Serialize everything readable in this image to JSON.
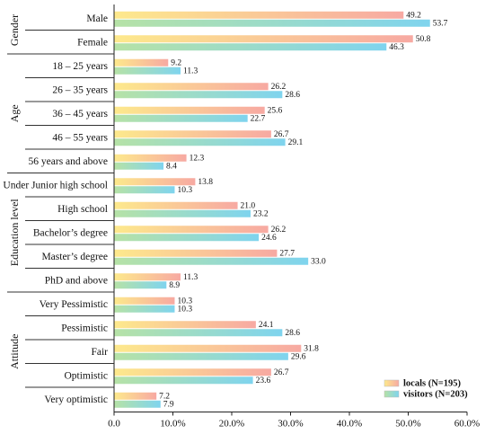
{
  "chart_data": {
    "type": "bar",
    "orientation": "horizontal",
    "groups": [
      {
        "name": "Gender",
        "categories": [
          "Male",
          "Female"
        ]
      },
      {
        "name": "Age",
        "categories": [
          "18 – 25 years",
          "26 – 35 years",
          "36 – 45 years",
          "46 – 55 years",
          "56 years and above"
        ]
      },
      {
        "name": "Education level",
        "categories": [
          "Under Junior high school",
          "High school",
          "Bachelor’s degree",
          "Master’s degree",
          "PhD and above"
        ]
      },
      {
        "name": "Attitude",
        "categories": [
          "Very Pessimistic",
          "Pessimistic",
          "Fair",
          "Optimistic",
          "Very optimistic"
        ]
      }
    ],
    "categories": [
      "Male",
      "Female",
      "18 – 25 years",
      "26 – 35 years",
      "36 – 45 years",
      "46 – 55 years",
      "56 years and above",
      "Under Junior high school",
      "High school",
      "Bachelor’s degree",
      "Master’s degree",
      "PhD and above",
      "Very Pessimistic",
      "Pessimistic",
      "Fair",
      "Optimistic",
      "Very optimistic"
    ],
    "series": [
      {
        "name": "locals (N=195)",
        "values": [
          49.2,
          50.8,
          9.2,
          26.2,
          25.6,
          26.7,
          12.3,
          13.8,
          21.0,
          26.2,
          27.7,
          11.3,
          10.3,
          24.1,
          31.8,
          26.7,
          7.2
        ],
        "labels": [
          "49.2",
          "50.8",
          "9.2",
          "26.2",
          "25.6",
          "26.7",
          "12.3",
          "13.8",
          "21.0",
          "26.2",
          "27.7",
          "11.3",
          "10.3",
          "24.1",
          "31.8",
          "26.7",
          "7.2"
        ],
        "gradient": [
          "#fde98c",
          "#f7a9a2"
        ]
      },
      {
        "name": "visitors (N=203)",
        "values": [
          53.7,
          46.3,
          11.3,
          28.6,
          22.7,
          29.1,
          8.4,
          10.3,
          23.2,
          24.6,
          33.0,
          8.9,
          10.3,
          28.6,
          29.6,
          23.6,
          7.9
        ],
        "labels": [
          "53.7",
          "46.3",
          "11.3",
          "28.6",
          "22.7",
          "29.1",
          "8.4",
          "10.3",
          "23.2",
          "24.6",
          "33.0",
          "8.9",
          "10.3",
          "28.6",
          "29.6",
          "23.6",
          "7.9"
        ],
        "gradient": [
          "#b6e2a6",
          "#7fd4ee"
        ]
      }
    ],
    "xlim": [
      0,
      60
    ],
    "xticks": [
      "0.0",
      "10.0%",
      "20.0%",
      "30.0%",
      "40.0%",
      "50.0%",
      "60.0%"
    ],
    "legend_position": "bottom-right",
    "grid": false
  }
}
